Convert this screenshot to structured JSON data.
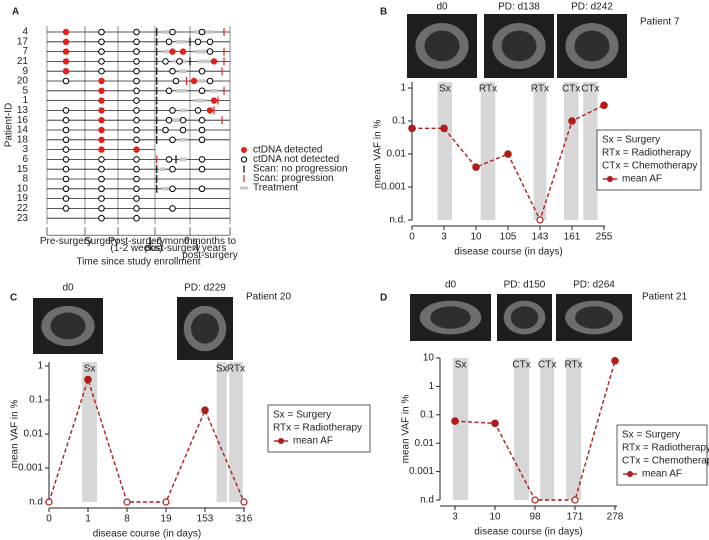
{
  "chart_data": [
    {
      "type": "swimmer",
      "panel": "A",
      "x_label": "Time since study enrollment",
      "y_label": "Patient-ID",
      "columns": [
        [
          "Pre-surgery"
        ],
        [
          "Surgery"
        ],
        [
          "Post-surgery",
          "(1-2 weeks)"
        ],
        [
          "1-6 months",
          "post-surgery"
        ],
        [
          "6 months to",
          "4 years",
          "post-surgery"
        ]
      ],
      "legend": [
        "ctDNA detected",
        "ctDNA not detected",
        "Scan: no progression",
        "Scan: progression",
        "Treatment"
      ],
      "colors": {
        "detected": "#e0211c",
        "progression": "#e0211c",
        "treatment": "#c8c8c8"
      },
      "patients": [
        {
          "id": "4",
          "end": 5,
          "detected": [
            0.5
          ],
          "not_detected": [
            1.5,
            2.5,
            3.5,
            4.3
          ],
          "scan_no_progression": [
            3.05
          ],
          "scan_progression": [
            4.85
          ],
          "treatment": [
            [
              3.2,
              3.4
            ],
            [
              4.1,
              4.6
            ]
          ]
        },
        {
          "id": "17",
          "end": 5,
          "detected": [
            0.5
          ],
          "not_detected": [
            1.5,
            2.5,
            3.4,
            4.2,
            4.5
          ],
          "scan_no_progression": [
            3.05,
            4.0
          ],
          "scan_progression": [],
          "treatment": [
            [
              3.6,
              3.9
            ]
          ]
        },
        {
          "id": "7",
          "end": 5,
          "detected": [
            0.5,
            3.5,
            3.8
          ],
          "not_detected": [
            1.5,
            2.5,
            4.5
          ],
          "scan_no_progression": [
            3.05
          ],
          "scan_progression": [
            4.85
          ],
          "treatment": [
            [
              3.2,
              3.4
            ],
            [
              4.1,
              4.4
            ]
          ]
        },
        {
          "id": "21",
          "end": 5,
          "detected": [
            0.5,
            4.6
          ],
          "not_detected": [
            1.5,
            2.5,
            3.3,
            3.7
          ],
          "scan_no_progression": [
            3.05,
            4.0
          ],
          "scan_progression": [
            4.85
          ],
          "treatment": [
            [
              3.5,
              3.9
            ],
            [
              4.2,
              4.5
            ]
          ]
        },
        {
          "id": "9",
          "end": 5,
          "detected": [
            0.5
          ],
          "not_detected": [
            1.5,
            2.5,
            3.5,
            4.3
          ],
          "scan_no_progression": [
            3.05
          ],
          "scan_progression": [
            4.8
          ],
          "treatment": [
            [
              3.7,
              3.9
            ]
          ]
        },
        {
          "id": "20",
          "end": 5,
          "detected": [
            1.5,
            4.1
          ],
          "not_detected": [
            0.5,
            2.5,
            3.6,
            4.5
          ],
          "scan_no_progression": [
            3.05
          ],
          "scan_progression": [
            3.9
          ],
          "treatment": [
            [
              4.2,
              4.4
            ]
          ]
        },
        {
          "id": "5",
          "end": 5,
          "detected": [
            1.5
          ],
          "not_detected": [
            2.5,
            3.4,
            4.3
          ],
          "scan_no_progression": [
            3.05
          ],
          "scan_progression": [
            4.85
          ],
          "treatment": [
            [
              3.6,
              3.9
            ],
            [
              4.5,
              4.7
            ]
          ]
        },
        {
          "id": "1",
          "end": 5,
          "detected": [
            1.5,
            4.6
          ],
          "not_detected": [
            2.5
          ],
          "scan_no_progression": [
            3.05
          ],
          "scan_progression": [
            4.7
          ],
          "treatment": [
            [
              4.1,
              4.4
            ]
          ]
        },
        {
          "id": "13",
          "end": 5,
          "detected": [
            1.5,
            4.5
          ],
          "not_detected": [
            0.5,
            2.5,
            3.5,
            4.2
          ],
          "scan_no_progression": [
            3.05
          ],
          "scan_progression": [
            4.6
          ],
          "treatment": [
            [
              3.7,
              3.9
            ]
          ]
        },
        {
          "id": "16",
          "end": 5,
          "detected": [
            1.5
          ],
          "not_detected": [
            0.5,
            2.5,
            3.4,
            3.8,
            4.3
          ],
          "scan_no_progression": [
            3.05
          ],
          "scan_progression": [
            4.8
          ],
          "treatment": [
            [
              3.5,
              3.7
            ]
          ]
        },
        {
          "id": "14",
          "end": 5,
          "detected": [
            1.5
          ],
          "not_detected": [
            0.5,
            2.5,
            3.3,
            3.8,
            4.3
          ],
          "scan_no_progression": [
            3.05
          ],
          "scan_progression": [],
          "treatment": []
        },
        {
          "id": "18",
          "end": 5,
          "detected": [
            1.5
          ],
          "not_detected": [
            0.5,
            2.5,
            3.5,
            4.3
          ],
          "scan_no_progression": [
            3.05
          ],
          "scan_progression": [],
          "treatment": [
            [
              3.7,
              3.9
            ]
          ]
        },
        {
          "id": "3",
          "end": 3,
          "detected": [
            1.5,
            2.5
          ],
          "not_detected": [
            0.5
          ],
          "scan_no_progression": [],
          "scan_progression": [],
          "treatment": []
        },
        {
          "id": "6",
          "end": 5,
          "detected": [],
          "not_detected": [
            0.5,
            1.5,
            2.5,
            3.4,
            4.3
          ],
          "scan_no_progression": [
            3.6
          ],
          "scan_progression": [
            3.05
          ],
          "treatment": [
            [
              3.7,
              3.9
            ]
          ]
        },
        {
          "id": "15",
          "end": 5,
          "detected": [],
          "not_detected": [
            0.5,
            1.5,
            2.5,
            3.5,
            4.3
          ],
          "scan_no_progression": [
            3.05
          ],
          "scan_progression": [],
          "treatment": [
            [
              3.1,
              3.3
            ]
          ]
        },
        {
          "id": "8",
          "end": 5,
          "detected": [],
          "not_detected": [
            0.5,
            1.5,
            2.5
          ],
          "scan_no_progression": [
            3.05
          ],
          "scan_progression": [],
          "treatment": []
        },
        {
          "id": "10",
          "end": 5,
          "detected": [],
          "not_detected": [
            0.5,
            1.5,
            2.5,
            3.5,
            4.3
          ],
          "scan_no_progression": [
            3.05
          ],
          "scan_progression": [],
          "treatment": [
            [
              3.2,
              3.4
            ]
          ]
        },
        {
          "id": "19",
          "end": 5,
          "detected": [],
          "not_detected": [
            0.5,
            1.5,
            2.5
          ],
          "scan_no_progression": [],
          "scan_progression": [],
          "treatment": []
        },
        {
          "id": "22",
          "end": 5,
          "detected": [],
          "not_detected": [
            0.5,
            1.5,
            2.5,
            3.5
          ],
          "scan_no_progression": [],
          "scan_progression": [],
          "treatment": []
        },
        {
          "id": "23",
          "end": 5,
          "detected": [],
          "not_detected": [
            1.5,
            2.5
          ],
          "scan_no_progression": [],
          "scan_progression": [],
          "treatment": []
        }
      ]
    },
    {
      "type": "line",
      "panel": "B",
      "patient": "Patient 7",
      "images": [
        "d0",
        "PD: d138",
        "PD: d242"
      ],
      "x_label": "disease course (in days)",
      "y_label": "mean VAF in %",
      "log_y": true,
      "categories": [
        "0",
        "3",
        "10",
        "105",
        "143",
        "161",
        "255"
      ],
      "series": [
        {
          "name": "mean AF",
          "color": "#b01c1c",
          "values": [
            0.06,
            0.06,
            0.004,
            0.01,
            "n.d.",
            0.1,
            0.3
          ]
        }
      ],
      "ylim": [
        0.0001,
        1
      ],
      "yticks": [
        1,
        0.1,
        0.01,
        0.001,
        {
          "value": 0.0001,
          "label": "n.d."
        }
      ],
      "bands": [
        {
          "label": "Sx",
          "from": 0.8,
          "to": 1.25
        },
        {
          "label": "RTx",
          "from": 2.15,
          "to": 2.6
        },
        {
          "label": "RTx",
          "from": 3.8,
          "to": 4.2
        },
        {
          "label": "CTx",
          "from": 4.75,
          "to": 5.2
        },
        {
          "label": "CTx",
          "from": 5.35,
          "to": 5.8
        }
      ],
      "legend": [
        "Sx = Surgery",
        "RTx = Radiotherapy",
        "CTx = Chemotherapy"
      ]
    },
    {
      "type": "line",
      "panel": "C",
      "patient": "Patient 20",
      "images": [
        "d0",
        "PD: d229"
      ],
      "x_label": "disease course (in days)",
      "y_label": "mean VAF in %",
      "log_y": true,
      "categories": [
        "0",
        "1",
        "8",
        "19",
        "153",
        "316"
      ],
      "series": [
        {
          "name": "mean AF",
          "color": "#b01c1c",
          "values": [
            "n.d.",
            0.4,
            "n.d.",
            "n.d.",
            0.05,
            "n.d."
          ]
        }
      ],
      "ylim": [
        0.0001,
        1
      ],
      "yticks": [
        1,
        0.1,
        0.01,
        0.001,
        {
          "value": 0.0001,
          "label": "n.d"
        }
      ],
      "bands": [
        {
          "label": "Sx",
          "from": 0.85,
          "to": 1.23
        },
        {
          "label": "Sx",
          "from": 4.3,
          "to": 4.56
        },
        {
          "label": "RTx",
          "from": 4.62,
          "to": 4.97
        }
      ],
      "legend": [
        "Sx = Surgery",
        "RTx = Radiotherapy"
      ]
    },
    {
      "type": "line",
      "panel": "D",
      "patient": "Patient 21",
      "images": [
        "d0",
        "PD: d150",
        "PD: d264"
      ],
      "x_label": "disease course (in days)",
      "y_label": "mean VAF in %",
      "log_y": true,
      "categories": [
        "3",
        "10",
        "98",
        "171",
        "278"
      ],
      "series": [
        {
          "name": "mean AF",
          "color": "#b01c1c",
          "values": [
            0.06,
            0.05,
            "n.d.",
            "n.d.",
            8
          ]
        }
      ],
      "ylim": [
        0.0001,
        10
      ],
      "yticks": [
        10,
        1,
        0.1,
        0.01,
        0.001,
        {
          "value": 0.0001,
          "label": "n.d"
        }
      ],
      "bands": [
        {
          "label": "Sx",
          "from": -0.05,
          "to": 0.33
        },
        {
          "label": "CTx",
          "from": 1.48,
          "to": 1.85
        },
        {
          "label": "CTx",
          "from": 2.13,
          "to": 2.48
        },
        {
          "label": "RTx",
          "from": 2.78,
          "to": 3.15
        }
      ],
      "legend": [
        "Sx = Surgery",
        "RTx = Radiotherapy",
        "CTx = Chemotherapy"
      ]
    }
  ]
}
